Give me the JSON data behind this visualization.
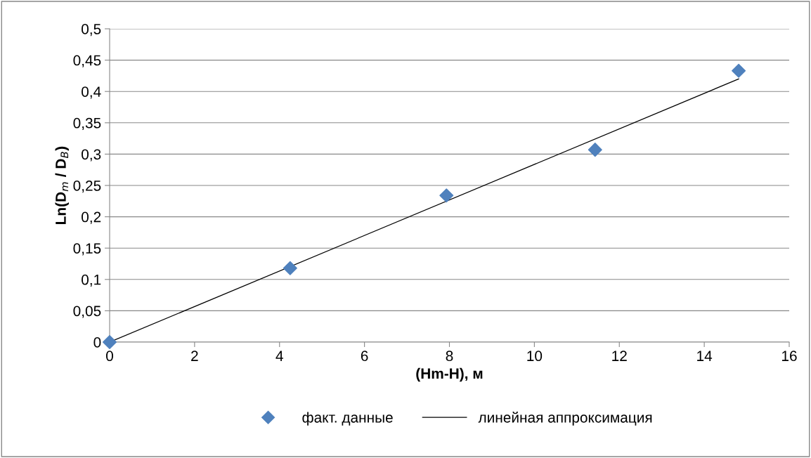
{
  "chart_data": {
    "type": "scatter",
    "xlabel": "(Hm-H), м",
    "ylabel": "Ln(D$_{m}$ / D$_{B}$)",
    "series": [
      {
        "name": "факт. данные",
        "color": "#4f81bd",
        "marker": "diamond",
        "x": [
          0,
          4.25,
          7.93,
          11.43,
          14.81
        ],
        "values": [
          0,
          0.118,
          0.234,
          0.307,
          0.433
        ]
      },
      {
        "name": "линейная аппроксимация",
        "type": "line",
        "color": "#000000",
        "marker": "none",
        "line_style": "solid",
        "x": [
          0,
          14.81
        ],
        "values": [
          0,
          0.42
        ]
      }
    ],
    "xlim": [
      0,
      16
    ],
    "xticks": [
      0,
      2,
      4,
      6,
      8,
      10,
      12,
      14,
      16
    ],
    "ylim": [
      0,
      0.5
    ],
    "yticks": [
      0,
      {
        "value": 0.05,
        "label": "0,05"
      },
      {
        "value": 0.1,
        "label": "0,1"
      },
      {
        "value": 0.15,
        "label": "0,15"
      },
      {
        "value": 0.2,
        "label": "0,2"
      },
      {
        "value": 0.25,
        "label": "0,25"
      },
      {
        "value": 0.3,
        "label": "0,3"
      },
      {
        "value": 0.35,
        "label": "0,35"
      },
      {
        "value": 0.4,
        "label": "0,4"
      },
      {
        "value": 0.45,
        "label": "0,45"
      },
      {
        "value": 0.5,
        "label": "0,5"
      }
    ],
    "grid": "y",
    "legend": "bottom"
  }
}
